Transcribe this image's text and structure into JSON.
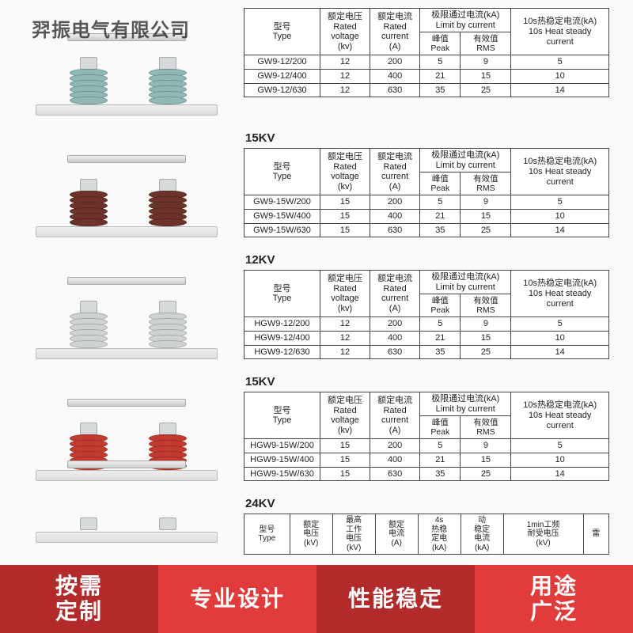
{
  "watermark": "羿振电气有限公司",
  "colors": {
    "teal": "#8fb7b6",
    "brown": "#6b332a",
    "grey": "#cfd2d3",
    "red": "#c23a30",
    "white": "#f4f5f5",
    "border": "#444444"
  },
  "footer": [
    {
      "bg": "#b22a2a",
      "l1": "按需",
      "l2": "定制"
    },
    {
      "bg": "#e13b3b",
      "l1": "专业设计"
    },
    {
      "bg": "#b22a2a",
      "l1": "性能稳定"
    },
    {
      "bg": "#e13b3b",
      "l1": "用途",
      "l2": "广泛"
    }
  ],
  "header_labels": {
    "type": "型号\nType",
    "voltage": "额定电压\nRated\nvoltage\n(kv)",
    "current": "额定电流\nRated\ncurrent\n(A)",
    "limit": "极限通过电流(kA)\nLimit by current",
    "peak": "峰值\nPeak",
    "rms": "有效值\nRMS",
    "heat": "10s热稳定电流(kA)\n10s Heat steady\ncurrent"
  },
  "header24": {
    "type": "型号\nType",
    "voltage": "额定\n电压\n(kV)",
    "maxv": "最高\n工作\n电压\n(kV)",
    "cur": "额定\n电流\n(A)",
    "h4s": "4s\n热稳\n定电\n(kA)",
    "dyn": "动\n稳定\n电流\n(kA)",
    "wf": "1min工频\n耐受电压\n(kV)",
    "extra": "雷"
  },
  "sections": [
    {
      "title": "",
      "ins_color": "#8fb7b6",
      "rows": [
        {
          "type": "GW9-12/200",
          "v": "12",
          "a": "200",
          "peak": "5",
          "rms": "9",
          "heat": "5"
        },
        {
          "type": "GW9-12/400",
          "v": "12",
          "a": "400",
          "peak": "21",
          "rms": "15",
          "heat": "10"
        },
        {
          "type": "GW9-12/630",
          "v": "12",
          "a": "630",
          "peak": "35",
          "rms": "25",
          "heat": "14"
        }
      ]
    },
    {
      "title": "15KV",
      "ins_color": "#6b332a",
      "rows": [
        {
          "type": "GW9-15W/200",
          "v": "15",
          "a": "200",
          "peak": "5",
          "rms": "9",
          "heat": "5"
        },
        {
          "type": "GW9-15W/400",
          "v": "15",
          "a": "400",
          "peak": "21",
          "rms": "15",
          "heat": "10"
        },
        {
          "type": "GW9-15W/630",
          "v": "15",
          "a": "630",
          "peak": "35",
          "rms": "25",
          "heat": "14"
        }
      ]
    },
    {
      "title": "12KV",
      "ins_color": "#cfd2d3",
      "rows": [
        {
          "type": "HGW9-12/200",
          "v": "12",
          "a": "200",
          "peak": "5",
          "rms": "9",
          "heat": "5"
        },
        {
          "type": "HGW9-12/400",
          "v": "12",
          "a": "400",
          "peak": "21",
          "rms": "15",
          "heat": "10"
        },
        {
          "type": "HGW9-12/630",
          "v": "12",
          "a": "630",
          "peak": "35",
          "rms": "25",
          "heat": "14"
        }
      ]
    },
    {
      "title": "15KV",
      "ins_color": "#c23a30",
      "rows": [
        {
          "type": "HGW9-15W/200",
          "v": "15",
          "a": "200",
          "peak": "5",
          "rms": "9",
          "heat": "5"
        },
        {
          "type": "HGW9-15W/400",
          "v": "15",
          "a": "400",
          "peak": "21",
          "rms": "15",
          "heat": "10"
        },
        {
          "type": "HGW9-15W/630",
          "v": "15",
          "a": "630",
          "peak": "35",
          "rms": "25",
          "heat": "14"
        }
      ]
    }
  ],
  "section24": {
    "title": "24KV",
    "ins_color": "#f4f5f5"
  }
}
